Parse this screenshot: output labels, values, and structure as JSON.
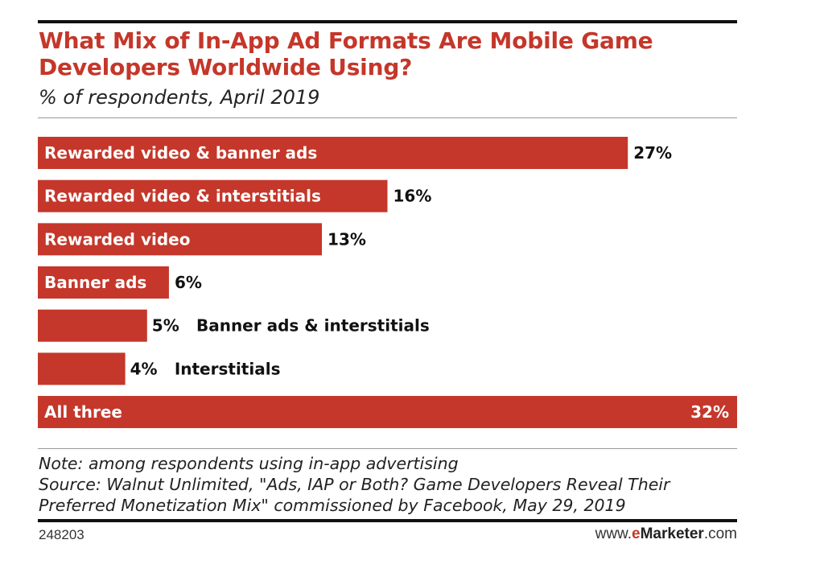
{
  "colors": {
    "bar": "#c4372a",
    "title": "#c4372a",
    "text": "#111111"
  },
  "header": {
    "title": "What Mix of In-App Ad Formats Are Mobile Game Developers Worldwide Using?",
    "subtitle": "% of respondents, April 2019"
  },
  "chart_data": {
    "type": "bar",
    "orientation": "horizontal",
    "categories": [
      "Rewarded video & banner ads",
      "Rewarded video & interstitials",
      "Rewarded video",
      "Banner ads",
      "Banner ads & interstitials",
      "Interstitials",
      "All three"
    ],
    "values": [
      27,
      16,
      13,
      6,
      5,
      4,
      32
    ],
    "value_labels": [
      "27%",
      "16%",
      "13%",
      "6%",
      "5%",
      "4%",
      "32%"
    ],
    "unit": "%",
    "title": "What Mix of In-App Ad Formats Are Mobile Game Developers Worldwide Using?",
    "subtitle": "% of respondents, April 2019",
    "xlim": [
      0,
      32
    ],
    "grid": false,
    "legend": "none"
  },
  "footer": {
    "note": "Note: among respondents using in-app advertising",
    "source_line1": "Source: Walnut Unlimited, \"Ads, IAP or Both? Game Developers Reveal Their",
    "source_line2": "Preferred Monetization Mix\" commissioned by Facebook, May 29, 2019",
    "chart_id": "248203",
    "brand_prefix": "www.",
    "brand_e": "e",
    "brand_name": "Marketer",
    "brand_suffix": ".com"
  }
}
